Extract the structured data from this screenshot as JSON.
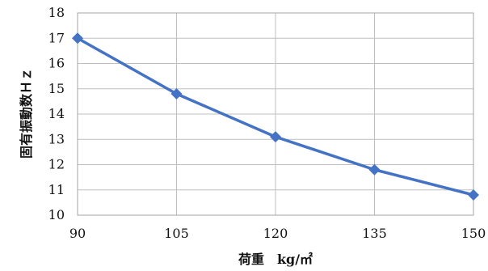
{
  "chart_data": {
    "type": "line",
    "title": "",
    "xlabel": "荷重　kg/㎡",
    "ylabel": "固有振動数Ｈｚ",
    "x": [
      90,
      105,
      120,
      135,
      150
    ],
    "xticks": [
      "90",
      "105",
      "120",
      "135",
      "150"
    ],
    "xlim": [
      90,
      150
    ],
    "ylim": [
      10,
      18
    ],
    "yticks": [
      "10",
      "11",
      "12",
      "13",
      "14",
      "15",
      "16",
      "17",
      "18"
    ],
    "grid": true,
    "legend": "none",
    "series": [
      {
        "values": [
          17.0,
          14.8,
          13.1,
          11.8,
          10.8
        ],
        "color": "#4472c4",
        "marker": "diamond"
      }
    ]
  }
}
